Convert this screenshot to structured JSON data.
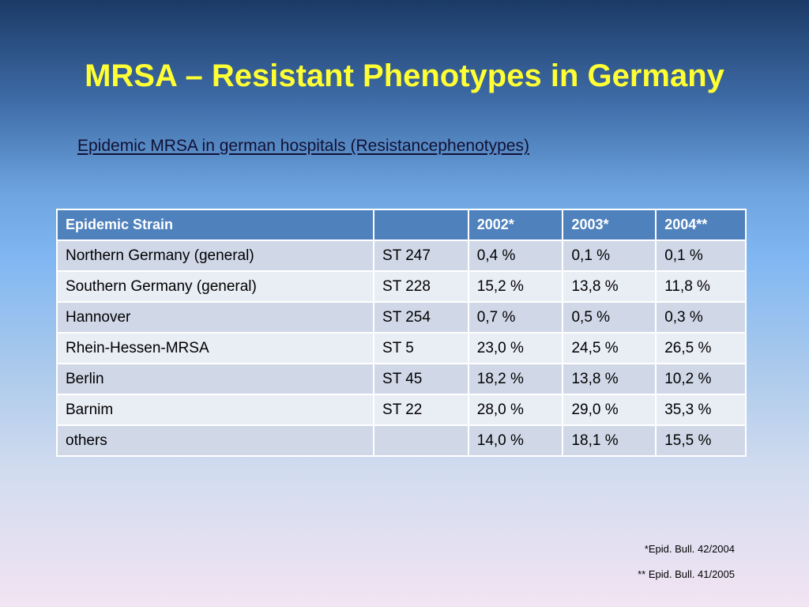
{
  "slide": {
    "title": "MRSA – Resistant Phenotypes in Germany",
    "subtitle": "Epidemic MRSA in german hospitals (Resistancephenotypes)"
  },
  "table": {
    "headers": [
      "Epidemic Strain",
      "",
      "2002*",
      "2003*",
      "2004**"
    ],
    "rows": [
      [
        "Northern Germany (general)",
        "ST 247",
        "0,4 %",
        "0,1 %",
        "0,1 %"
      ],
      [
        "Southern Germany (general)",
        "ST 228",
        "15,2 %",
        "13,8 %",
        "11,8 %"
      ],
      [
        "Hannover",
        "ST 254",
        "0,7 %",
        "0,5 %",
        "0,3 %"
      ],
      [
        "Rhein-Hessen-MRSA",
        "ST 5",
        "23,0 %",
        "24,5 %",
        "26,5 %"
      ],
      [
        "Berlin",
        "ST 45",
        "18,2 %",
        "13,8 %",
        "10,2 %"
      ],
      [
        "Barnim",
        "ST 22",
        "28,0 %",
        "29,0 %",
        "35,3 %"
      ],
      [
        "others",
        "",
        "14,0 %",
        "18,1 %",
        "15,5 %"
      ]
    ]
  },
  "footnotes": {
    "note1": "*Epid. Bull. 42/2004",
    "note2": "** Epid. Bull. 41/2005"
  },
  "colors": {
    "title": "#ffff33",
    "header_fill": "#4f81bd",
    "row_odd": "#d0d8e8",
    "row_even": "#e9edf4"
  }
}
